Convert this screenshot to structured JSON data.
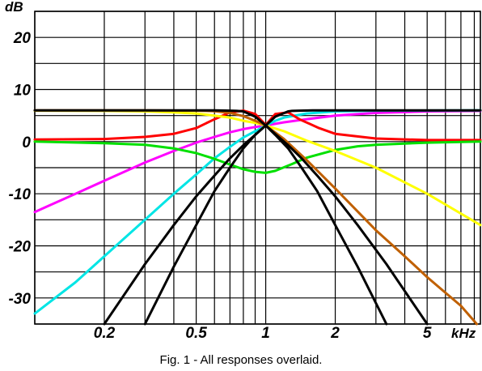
{
  "caption": "Fig. 1 - All responses overlaid.",
  "chart_data": {
    "type": "line",
    "title": "",
    "xlabel": "kHz",
    "ylabel": "dB",
    "x_scale": "log",
    "xlim": [
      0.1,
      8.5
    ],
    "ylim": [
      -35,
      25
    ],
    "grid": true,
    "x_ticks": [
      {
        "value": 0.2,
        "label": "0.2"
      },
      {
        "value": 0.5,
        "label": "0.5"
      },
      {
        "value": 1,
        "label": "1"
      },
      {
        "value": 2,
        "label": "2"
      },
      {
        "value": 5,
        "label": "5"
      }
    ],
    "x_grid": [
      0.1,
      0.2,
      0.3,
      0.4,
      0.5,
      0.6,
      0.7,
      0.8,
      0.9,
      1,
      2,
      3,
      4,
      5,
      6,
      7,
      8
    ],
    "y_ticks": [
      {
        "value": 20,
        "label": "20"
      },
      {
        "value": 10,
        "label": "10"
      },
      {
        "value": 0,
        "label": "0"
      },
      {
        "value": -10,
        "label": "-10"
      },
      {
        "value": -20,
        "label": "-20"
      },
      {
        "value": -30,
        "label": "-30"
      }
    ],
    "series": [
      {
        "color": "#ff00ff",
        "x": [
          0.1,
          0.15,
          0.2,
          0.3,
          0.4,
          0.5,
          0.6,
          0.7,
          0.8,
          0.9,
          1.0,
          1.2,
          1.5,
          2,
          3,
          5,
          8.5
        ],
        "y": [
          -13.5,
          -10,
          -7.5,
          -4,
          -1.8,
          -0.2,
          0.9,
          1.8,
          2.4,
          2.8,
          3.1,
          3.7,
          4.3,
          5.0,
          5.5,
          5.8,
          5.9
        ]
      },
      {
        "color": "#00e5e5",
        "x": [
          0.1,
          0.15,
          0.2,
          0.3,
          0.4,
          0.5,
          0.6,
          0.7,
          0.8,
          0.9,
          1.0,
          1.1,
          1.2,
          1.5,
          2,
          3,
          8.5
        ],
        "y": [
          -33,
          -27,
          -22,
          -15,
          -10,
          -6.3,
          -3.2,
          -1.0,
          0.8,
          2.0,
          3.1,
          4.0,
          4.6,
          5.4,
          5.8,
          5.95,
          6.0
        ]
      },
      {
        "color": "#ff0000",
        "x": [
          0.1,
          0.2,
          0.3,
          0.4,
          0.5,
          0.6,
          0.7,
          0.8,
          0.9,
          1.0,
          1.1,
          1.25,
          1.4,
          1.7,
          2,
          3,
          5,
          8.5
        ],
        "y": [
          0.4,
          0.5,
          0.9,
          1.5,
          2.6,
          4.3,
          5.6,
          5.95,
          5.3,
          3.2,
          5.3,
          5.6,
          4.3,
          2.6,
          1.5,
          0.6,
          0.3,
          0.3
        ]
      },
      {
        "color": "#00e000",
        "x": [
          0.1,
          0.2,
          0.3,
          0.4,
          0.5,
          0.6,
          0.7,
          0.8,
          0.9,
          1.0,
          1.1,
          1.3,
          1.5,
          2,
          2.5,
          3,
          5,
          8.5
        ],
        "y": [
          0,
          -0.3,
          -0.6,
          -1.3,
          -2.2,
          -3.3,
          -4.4,
          -5.3,
          -5.8,
          -6.0,
          -5.6,
          -4.3,
          -3.1,
          -1.6,
          -0.9,
          -0.6,
          -0.2,
          0
        ]
      },
      {
        "color": "#ffff00",
        "x": [
          0.1,
          0.2,
          0.3,
          0.4,
          0.5,
          0.6,
          0.7,
          0.8,
          0.9,
          1.0,
          1.2,
          1.5,
          2,
          3,
          5,
          8.5
        ],
        "y": [
          5.95,
          5.9,
          5.8,
          5.6,
          5.4,
          5.0,
          4.6,
          4.0,
          3.6,
          3.1,
          2.0,
          0.2,
          -1.8,
          -5.0,
          -10,
          -16
        ]
      },
      {
        "color": "#c06000",
        "x": [
          0.1,
          0.3,
          0.5,
          0.6,
          0.7,
          0.8,
          0.9,
          1.0,
          1.2,
          1.5,
          2,
          3,
          4,
          5,
          6,
          7,
          8.2
        ],
        "y": [
          6,
          6,
          5.95,
          5.85,
          5.5,
          4.9,
          4.0,
          3.1,
          0.5,
          -3.5,
          -9.0,
          -17,
          -22,
          -26,
          -29,
          -31.5,
          -35
        ]
      },
      {
        "color": "#000000",
        "x": [
          0.1,
          0.3,
          0.5,
          0.6,
          0.7,
          0.75,
          0.8,
          0.9,
          1.0,
          1.1,
          1.25,
          1.3,
          1.4,
          1.6,
          2,
          3,
          8.5
        ],
        "y": [
          6,
          6,
          6,
          6,
          5.95,
          5.9,
          5.8,
          4.8,
          3.1,
          4.8,
          5.8,
          5.9,
          5.95,
          6,
          6,
          6,
          6
        ]
      },
      {
        "color": "#000000",
        "x": [
          0.3,
          0.4,
          0.5,
          0.6,
          0.7,
          0.8,
          0.9,
          1.0
        ],
        "y": [
          -35,
          -24,
          -16,
          -9.5,
          -5,
          -1.3,
          1.3,
          3.1
        ]
      },
      {
        "color": "#000000",
        "x": [
          1.0,
          1.1,
          1.25,
          1.43,
          1.67,
          2,
          2.5,
          3.33
        ],
        "y": [
          3.1,
          1.3,
          -1.3,
          -5,
          -9.5,
          -16,
          -24,
          -35
        ]
      },
      {
        "color": "#000000",
        "x": [
          0.2,
          0.3,
          0.4,
          0.5,
          0.6,
          0.7,
          0.8,
          0.9,
          1.0
        ],
        "y": [
          -35,
          -23.5,
          -16,
          -10.5,
          -6.5,
          -3.2,
          -0.7,
          1.3,
          3.1
        ]
      },
      {
        "color": "#000000",
        "x": [
          1.0,
          1.11,
          1.25,
          1.43,
          1.67,
          2,
          2.5,
          3.33,
          5
        ],
        "y": [
          3.1,
          1.3,
          -0.7,
          -3.2,
          -6.5,
          -10.5,
          -16,
          -23.5,
          -35
        ]
      }
    ]
  }
}
